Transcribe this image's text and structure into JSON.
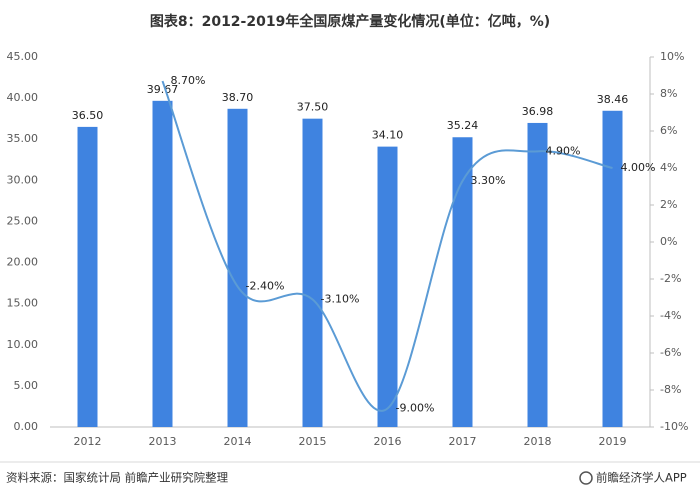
{
  "chart_data": {
    "type": "bar",
    "title": "图表8：2012-2019年全国原煤产量变化情况(单位：亿吨，%)",
    "categories": [
      "2012",
      "2013",
      "2014",
      "2015",
      "2016",
      "2017",
      "2018",
      "2019"
    ],
    "series": [
      {
        "type": "bar",
        "color": "#3f83e0",
        "values": [
          36.5,
          39.67,
          38.7,
          37.5,
          34.1,
          35.24,
          36.98,
          38.46
        ],
        "value_labels": [
          "36.50",
          "39.67",
          "38.70",
          "37.50",
          "34.10",
          "35.24",
          "36.98",
          "38.46"
        ]
      },
      {
        "type": "line",
        "axis": "y2",
        "color": "#5b9bd5",
        "values": [
          null,
          8.7,
          -2.4,
          -3.1,
          -9.0,
          3.3,
          4.9,
          4.0
        ],
        "value_labels": [
          null,
          "8.70%",
          "-2.40%",
          "-3.10%",
          "-9.00%",
          "3.30%",
          "4.90%",
          "4.00%"
        ]
      }
    ],
    "ylim": [
      0,
      45
    ],
    "yticks": [
      {
        "value": 0,
        "label": "0.00"
      },
      {
        "value": 5,
        "label": "5.00"
      },
      {
        "value": 10,
        "label": "10.00"
      },
      {
        "value": 15,
        "label": "15.00"
      },
      {
        "value": 20,
        "label": "20.00"
      },
      {
        "value": 25,
        "label": "25.00"
      },
      {
        "value": 30,
        "label": "30.00"
      },
      {
        "value": 35,
        "label": "35.00"
      },
      {
        "value": 40,
        "label": "40.00"
      },
      {
        "value": 45,
        "label": "45.00"
      }
    ],
    "y2lim": [
      -10,
      10
    ],
    "y2ticks": [
      {
        "value": -10,
        "label": "-10%"
      },
      {
        "value": -8,
        "label": "-8%"
      },
      {
        "value": -6,
        "label": "-6%"
      },
      {
        "value": -4,
        "label": "-4%"
      },
      {
        "value": -2,
        "label": "-2%"
      },
      {
        "value": 0,
        "label": "0%"
      },
      {
        "value": 2,
        "label": "2%"
      },
      {
        "value": 4,
        "label": "4%"
      },
      {
        "value": 6,
        "label": "6%"
      },
      {
        "value": 8,
        "label": "8%"
      },
      {
        "value": 10,
        "label": "10%"
      }
    ]
  },
  "source": "资料来源：国家统计局 前瞻产业研究院整理",
  "brand": "前瞻经济学人APP"
}
